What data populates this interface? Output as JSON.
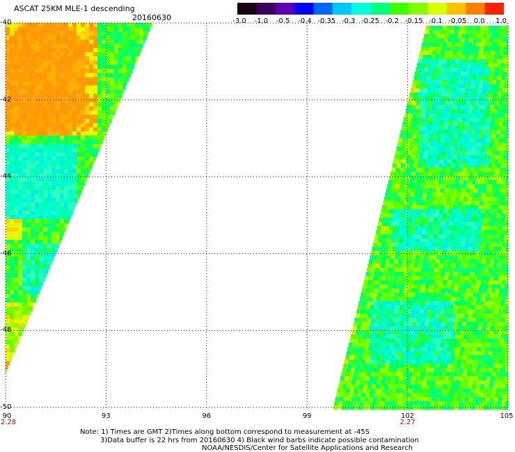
{
  "title": "ASCAT 25KM MLE-1 descending",
  "date": "20160630",
  "colorbar": {
    "labels": [
      "-3.0",
      "-1.0",
      "-0.5",
      "-0.4",
      "-0.35",
      "-0.3",
      "-0.25",
      "-0.2",
      "-0.15",
      "-0.1",
      "-0.05",
      "0.0",
      "1.0"
    ],
    "colors": [
      "#1a0010",
      "#3d0060",
      "#5a00b0",
      "#0000ff",
      "#0066ff",
      "#00c8ff",
      "#00ffe0",
      "#00ff80",
      "#40ff00",
      "#80ff00",
      "#d8ff00",
      "#ffc000",
      "#ff8000",
      "#ff2000"
    ]
  },
  "axes": {
    "lat_labels": [
      "-40",
      "-42",
      "-44",
      "-46",
      "-48",
      "-50"
    ],
    "lon_labels": [
      "90",
      "93",
      "96",
      "99",
      "102",
      "105"
    ],
    "time_labels": [
      {
        "lon": "90",
        "text": "2.28"
      },
      {
        "lon": "102",
        "text": "2.27"
      }
    ]
  },
  "notes": [
    "Note: 1) Times are GMT 2)Times along bottom correspond to measurement at -45S",
    "3)Data buffer is 22 hrs from 20160630 4) Black wind barbs indicate possible contamination",
    "NOAA/NESDIS/Center for Satellite Applications and Research"
  ]
}
